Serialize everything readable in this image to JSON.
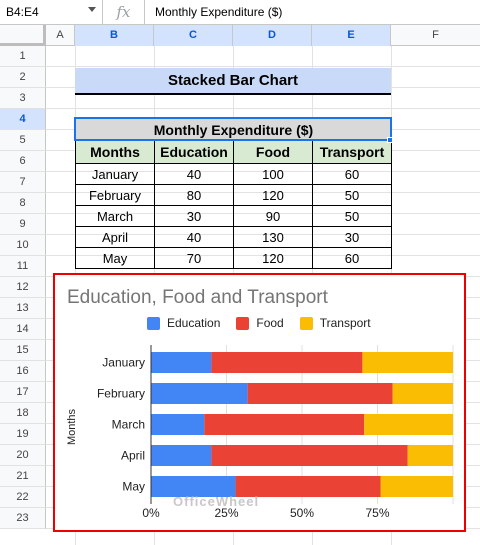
{
  "formula_bar": {
    "name_box": "B4:E4",
    "fx": "fx",
    "formula": "Monthly Expenditure ($)"
  },
  "columns": [
    "A",
    "B",
    "C",
    "D",
    "E",
    "F"
  ],
  "rows": [
    "1",
    "2",
    "3",
    "4",
    "5",
    "6",
    "7",
    "8",
    "9",
    "10",
    "11",
    "12",
    "13",
    "14",
    "15",
    "16",
    "17",
    "18",
    "19",
    "20",
    "21",
    "22",
    "23"
  ],
  "sheet": {
    "title": "Stacked Bar Chart",
    "table_title": "Monthly Expenditure ($)",
    "headers": [
      "Months",
      "Education",
      "Food",
      "Transport"
    ],
    "data": [
      [
        "January",
        "40",
        "100",
        "60"
      ],
      [
        "February",
        "80",
        "120",
        "50"
      ],
      [
        "March",
        "30",
        "90",
        "50"
      ],
      [
        "April",
        "40",
        "130",
        "30"
      ],
      [
        "May",
        "70",
        "120",
        "60"
      ]
    ]
  },
  "chart_data": {
    "type": "bar",
    "stacked": "percent",
    "orientation": "horizontal",
    "title": "Education, Food and Transport",
    "ylabel": "Months",
    "xlabel": "",
    "categories": [
      "January",
      "February",
      "March",
      "April",
      "May"
    ],
    "series": [
      {
        "name": "Education",
        "values": [
          40,
          80,
          30,
          40,
          70
        ],
        "color": "#4285f4"
      },
      {
        "name": "Food",
        "values": [
          100,
          120,
          90,
          130,
          120
        ],
        "color": "#ea4335"
      },
      {
        "name": "Transport",
        "values": [
          60,
          50,
          50,
          30,
          60
        ],
        "color": "#fbbc04"
      }
    ],
    "x_ticks": [
      "0%",
      "25%",
      "50%",
      "75%"
    ],
    "legend_position": "top",
    "watermark": "OfficeWheel"
  }
}
